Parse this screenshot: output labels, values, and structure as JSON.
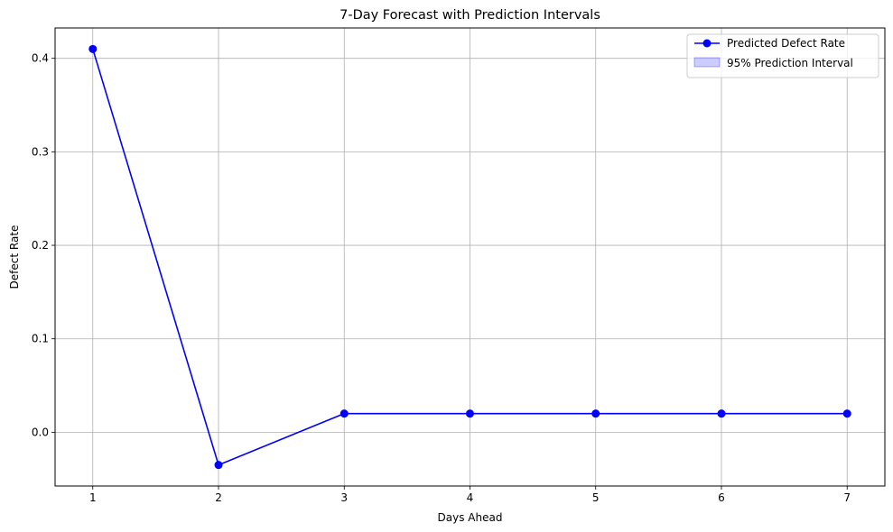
{
  "chart_data": {
    "type": "line",
    "title": "7-Day Forecast with Prediction Intervals",
    "xlabel": "Days Ahead",
    "ylabel": "Defect Rate",
    "x": [
      1,
      2,
      3,
      4,
      5,
      6,
      7
    ],
    "series": [
      {
        "name": "Predicted Defect Rate",
        "values": [
          0.41,
          -0.035,
          0.02,
          0.02,
          0.02,
          0.02,
          0.02
        ],
        "color": "#0000ff",
        "marker": "circle"
      }
    ],
    "interval": {
      "name": "95% Prediction Interval",
      "color": "#0000ff",
      "alpha": 0.2
    },
    "xlim": [
      0.7,
      7.3
    ],
    "ylim": [
      -0.0575,
      0.4325
    ],
    "xticks": [
      1,
      2,
      3,
      4,
      5,
      6,
      7
    ],
    "yticks": [
      0.0,
      0.1,
      0.2,
      0.3,
      0.4
    ],
    "ytick_labels": [
      "0.0",
      "0.1",
      "0.2",
      "0.3",
      "0.4"
    ],
    "grid": true,
    "legend_position": "upper right"
  }
}
